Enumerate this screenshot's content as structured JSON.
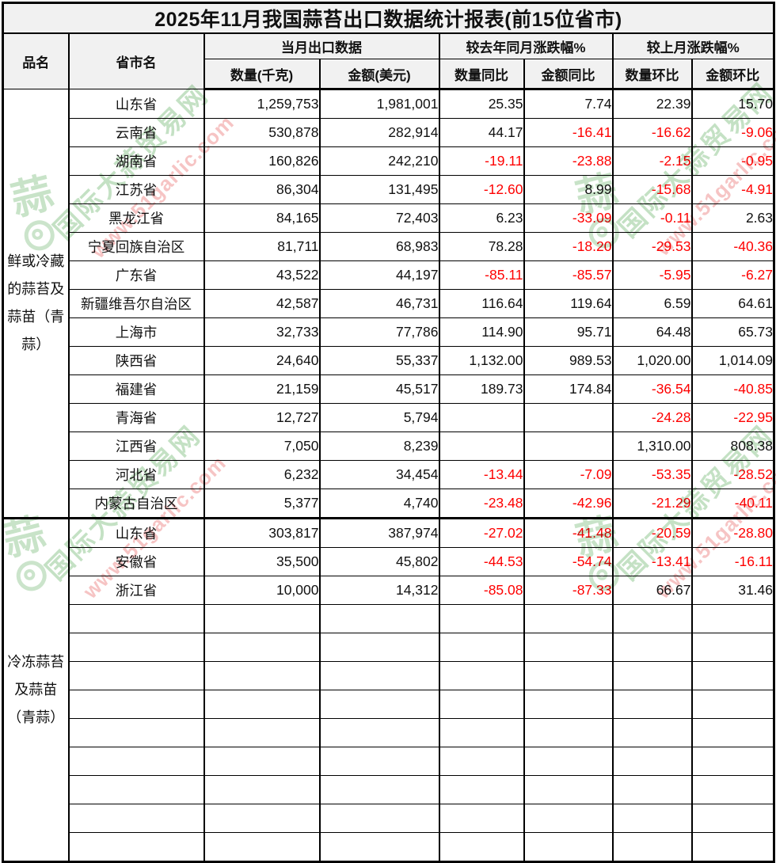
{
  "title": "2025年11月我国蒜苔出口数据统计报表(前15位省市)",
  "columns": {
    "product": "品名",
    "province": "省市名",
    "current_month_group": "当月出口数据",
    "qty_kg": "数量(千克)",
    "amount_usd": "金额(美元)",
    "yoy_group": "较去年同月涨跌幅%",
    "qty_yoy": "数量同比",
    "amount_yoy": "金额同比",
    "mom_group": "较上月涨跌幅%",
    "qty_mom": "数量环比",
    "amount_mom": "金额环比"
  },
  "status_colors": {
    "negative_value": "#fe0000",
    "positive_value": "#111111",
    "header_fill": "#f1f1f1",
    "border": "#000000"
  },
  "groups": [
    {
      "product": "鲜或冷藏\n的蒜苔及\n蒜苗（青\n蒜）",
      "empty_rows": 0,
      "rows": [
        {
          "province": "山东省",
          "values": [
            "1,259,753",
            "1,981,001",
            "25.35",
            "7.74",
            "22.39",
            "15.70"
          ]
        },
        {
          "province": "云南省",
          "values": [
            "530,878",
            "282,914",
            "44.17",
            "-16.41",
            "-16.62",
            "-9.06"
          ]
        },
        {
          "province": "湖南省",
          "values": [
            "160,826",
            "242,210",
            "-19.11",
            "-23.88",
            "-2.15",
            "-0.95"
          ]
        },
        {
          "province": "江苏省",
          "values": [
            "86,304",
            "131,495",
            "-12.60",
            "8.99",
            "-15.68",
            "-4.91"
          ]
        },
        {
          "province": "黑龙江省",
          "values": [
            "84,165",
            "72,403",
            "6.23",
            "-33.09",
            "-0.11",
            "2.63"
          ]
        },
        {
          "province": "宁夏回族自治区",
          "values": [
            "81,711",
            "68,983",
            "78.28",
            "-18.20",
            "-29.53",
            "-40.36"
          ]
        },
        {
          "province": "广东省",
          "values": [
            "43,522",
            "44,197",
            "-85.11",
            "-85.57",
            "-5.95",
            "-6.27"
          ]
        },
        {
          "province": "新疆维吾尔自治区",
          "values": [
            "42,587",
            "46,731",
            "116.64",
            "119.64",
            "6.59",
            "64.61"
          ]
        },
        {
          "province": "上海市",
          "values": [
            "32,733",
            "77,786",
            "114.90",
            "95.71",
            "64.48",
            "65.73"
          ]
        },
        {
          "province": "陕西省",
          "values": [
            "24,640",
            "55,337",
            "1,132.00",
            "989.53",
            "1,020.00",
            "1,014.09"
          ]
        },
        {
          "province": "福建省",
          "values": [
            "21,159",
            "45,517",
            "189.73",
            "174.84",
            "-36.54",
            "-40.85"
          ]
        },
        {
          "province": "青海省",
          "values": [
            "12,727",
            "5,794",
            "",
            "",
            "-24.28",
            "-22.95"
          ]
        },
        {
          "province": "江西省",
          "values": [
            "7,050",
            "8,239",
            "",
            "",
            "1,310.00",
            "808.38"
          ]
        },
        {
          "province": "河北省",
          "values": [
            "6,232",
            "34,454",
            "-13.44",
            "-7.09",
            "-53.35",
            "-28.52"
          ]
        },
        {
          "province": "内蒙古自治区",
          "values": [
            "5,377",
            "4,740",
            "-23.48",
            "-42.96",
            "-21.29",
            "-40.11"
          ]
        }
      ]
    },
    {
      "product": "冷冻蒜苔\n及蒜苗\n（青蒜）",
      "empty_rows": 9,
      "rows": [
        {
          "province": "山东省",
          "values": [
            "303,817",
            "387,974",
            "-27.02",
            "-41.48",
            "-20.59",
            "-28.80"
          ]
        },
        {
          "province": "安徽省",
          "values": [
            "35,500",
            "45,802",
            "-44.53",
            "-54.74",
            "-13.41",
            "-16.11"
          ]
        },
        {
          "province": "浙江省",
          "values": [
            "10,000",
            "14,312",
            "-85.08",
            "-87.33",
            "66.67",
            "31.46"
          ]
        }
      ]
    }
  ],
  "watermark": {
    "site_name": "国际大蒜贸易网",
    "site_url": "www.51garlic.com",
    "logo_char": "蒜",
    "green_color": "#7cbc7c",
    "pink_color": "#ee9494"
  }
}
